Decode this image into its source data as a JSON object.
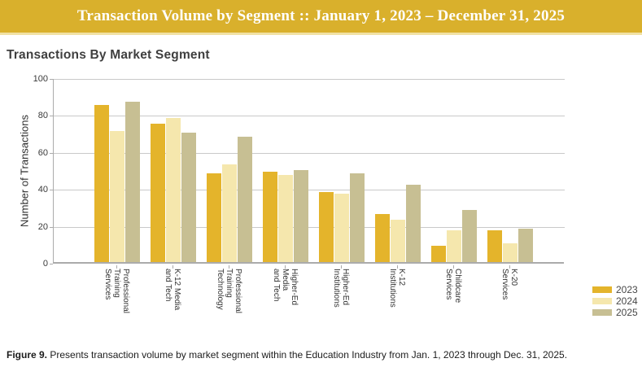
{
  "banner": {
    "title": "Transaction Volume by Segment :: January 1, 2023 – December 31, 2025",
    "background": "#d9b02c",
    "border_color": "#f1e1a4",
    "text_color": "#ffffff"
  },
  "caption": {
    "label": "Figure 9.",
    "text": "Presents transaction volume by market segment within the Education Industry from Jan. 1, 2023 through Dec. 31, 2025."
  },
  "colors": {
    "gridline": "#c9c9c9",
    "axis": "#ababab",
    "text_dark": "#3a3a3a"
  },
  "chart_data": {
    "type": "bar",
    "title": "Transactions By Market Segment",
    "xlabel": "",
    "ylabel": "Number of Transactions",
    "ylim": [
      0,
      100
    ],
    "yticks": [
      0,
      20,
      40,
      60,
      80,
      100
    ],
    "grid": true,
    "legend_position": "bottom-right",
    "categories": [
      "Professional Training Services",
      "K-12 Media and Tech",
      "Professional Training Technology",
      "Higher-Ed Media and Tech",
      "Higher-Ed Institutions",
      "K-12 Institutions",
      "Childcare Services",
      "K-20 Services"
    ],
    "category_lines": [
      [
        "Professional",
        "Training",
        "Services"
      ],
      [
        "K-12 Media",
        "and Tech"
      ],
      [
        "Professional",
        "Training",
        "Technology"
      ],
      [
        "Higher-Ed",
        "Media",
        "and Tech"
      ],
      [
        "Higher-Ed",
        "Institutions"
      ],
      [
        "K-12",
        "Institutions"
      ],
      [
        "Childcare",
        "Services"
      ],
      [
        "K-20",
        "Services"
      ]
    ],
    "series": [
      {
        "name": "2023",
        "color": "#e4b42b",
        "values": [
          85,
          75,
          48,
          49,
          38,
          26,
          9,
          17
        ]
      },
      {
        "name": "2024",
        "color": "#f5e7ad",
        "values": [
          71,
          78,
          53,
          47,
          37,
          23,
          17,
          10
        ]
      },
      {
        "name": "2025",
        "color": "#c7bf93",
        "values": [
          87,
          70,
          68,
          50,
          48,
          42,
          28,
          18
        ]
      }
    ]
  }
}
